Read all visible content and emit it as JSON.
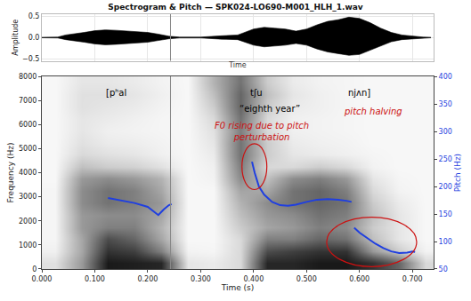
{
  "chart_data": [
    {
      "type": "area",
      "title": "Spectrogram & Pitch — SPK024-LO690-M001_HLH_1.wav",
      "x_label": "Time",
      "y_label": "Amplitude",
      "color": "#000000",
      "x": [
        0.0,
        0.03,
        0.045,
        0.06,
        0.08,
        0.1,
        0.12,
        0.14,
        0.16,
        0.18,
        0.2,
        0.22,
        0.24,
        0.26,
        0.3,
        0.34,
        0.37,
        0.4,
        0.42,
        0.44,
        0.46,
        0.48,
        0.5,
        0.52,
        0.54,
        0.56,
        0.58,
        0.6,
        0.62,
        0.64,
        0.66,
        0.68,
        0.7,
        0.72,
        0.735
      ],
      "upper": [
        0.005,
        0.01,
        0.06,
        0.08,
        0.12,
        0.16,
        0.18,
        0.17,
        0.15,
        0.14,
        0.12,
        0.08,
        0.03,
        0.01,
        0.01,
        0.04,
        0.06,
        0.2,
        0.24,
        0.22,
        0.2,
        0.15,
        0.2,
        0.3,
        0.38,
        0.42,
        0.48,
        0.45,
        0.35,
        0.22,
        0.12,
        0.06,
        0.03,
        0.01,
        0.005
      ],
      "lower": [
        -0.005,
        -0.01,
        -0.05,
        -0.07,
        -0.11,
        -0.15,
        -0.17,
        -0.16,
        -0.14,
        -0.13,
        -0.11,
        -0.07,
        -0.03,
        -0.01,
        -0.01,
        -0.04,
        -0.05,
        -0.18,
        -0.22,
        -0.2,
        -0.18,
        -0.14,
        -0.18,
        -0.27,
        -0.34,
        -0.38,
        -0.42,
        -0.4,
        -0.3,
        -0.2,
        -0.1,
        -0.05,
        -0.03,
        -0.01,
        -0.005
      ],
      "xlim": [
        0,
        0.74
      ],
      "xticks": [
        0,
        0.1,
        0.2,
        0.3,
        0.4,
        0.5,
        0.6,
        0.7
      ],
      "ylim": [
        -0.55,
        0.55
      ],
      "yticks": [
        {
          "value": -0.5,
          "label": "−0.5"
        },
        {
          "value": 0,
          "label": "0.0"
        },
        {
          "value": 0.5,
          "label": "0.5"
        }
      ],
      "grid": true,
      "tick_labels": "y",
      "boundary": 0.243
    },
    {
      "type": "heatmap",
      "x_label": "Time (s)",
      "y_label": "Frequency (Hz)",
      "y2_label": "Pitch (Hz)",
      "x": [
        0.025,
        0.075,
        0.125,
        0.175,
        0.225,
        0.275,
        0.325,
        0.375,
        0.425,
        0.475,
        0.525,
        0.575,
        0.625,
        0.675,
        0.725
      ],
      "y": [
        250,
        750,
        1250,
        1750,
        2250,
        2750,
        3250,
        3750,
        4250,
        4750,
        5250,
        5750,
        6250,
        6750,
        7250,
        7750
      ],
      "z": [
        [
          0.12,
          0.06,
          0.04,
          0.04,
          0.04,
          0.04,
          0.04,
          0.03,
          0.03,
          0.03,
          0.03,
          0.03,
          0.03,
          0.03,
          0.03,
          0.03
        ],
        [
          0.4,
          0.35,
          0.35,
          0.4,
          0.4,
          0.45,
          0.45,
          0.4,
          0.25,
          0.15,
          0.12,
          0.1,
          0.1,
          0.12,
          0.12,
          0.1
        ],
        [
          0.9,
          0.8,
          0.7,
          0.5,
          0.45,
          0.55,
          0.55,
          0.45,
          0.2,
          0.12,
          0.08,
          0.06,
          0.08,
          0.1,
          0.12,
          0.1
        ],
        [
          0.88,
          0.75,
          0.6,
          0.5,
          0.45,
          0.5,
          0.5,
          0.4,
          0.18,
          0.1,
          0.07,
          0.05,
          0.06,
          0.08,
          0.1,
          0.08
        ],
        [
          0.85,
          0.5,
          0.35,
          0.3,
          0.35,
          0.4,
          0.35,
          0.3,
          0.12,
          0.06,
          0.05,
          0.04,
          0.04,
          0.05,
          0.06,
          0.05
        ],
        [
          0.1,
          0.05,
          0.03,
          0.03,
          0.03,
          0.03,
          0.03,
          0.03,
          0.03,
          0.03,
          0.03,
          0.03,
          0.03,
          0.03,
          0.03,
          0.03
        ],
        [
          0.08,
          0.04,
          0.03,
          0.03,
          0.03,
          0.03,
          0.03,
          0.05,
          0.06,
          0.08,
          0.1,
          0.12,
          0.15,
          0.2,
          0.25,
          0.3
        ],
        [
          0.15,
          0.15,
          0.15,
          0.2,
          0.25,
          0.3,
          0.35,
          0.45,
          0.5,
          0.55,
          0.55,
          0.5,
          0.55,
          0.6,
          0.6,
          0.55
        ],
        [
          0.85,
          0.7,
          0.5,
          0.35,
          0.4,
          0.45,
          0.35,
          0.25,
          0.15,
          0.2,
          0.2,
          0.15,
          0.15,
          0.2,
          0.25,
          0.2
        ],
        [
          0.85,
          0.75,
          0.5,
          0.4,
          0.45,
          0.55,
          0.55,
          0.45,
          0.15,
          0.1,
          0.08,
          0.06,
          0.06,
          0.08,
          0.1,
          0.08
        ],
        [
          0.9,
          0.8,
          0.6,
          0.5,
          0.55,
          0.6,
          0.6,
          0.5,
          0.2,
          0.08,
          0.06,
          0.05,
          0.05,
          0.06,
          0.06,
          0.05
        ],
        [
          0.9,
          0.8,
          0.55,
          0.45,
          0.5,
          0.55,
          0.5,
          0.4,
          0.15,
          0.06,
          0.05,
          0.04,
          0.04,
          0.04,
          0.04,
          0.04
        ],
        [
          0.8,
          0.4,
          0.25,
          0.2,
          0.25,
          0.2,
          0.15,
          0.1,
          0.05,
          0.04,
          0.03,
          0.03,
          0.03,
          0.03,
          0.03,
          0.03
        ],
        [
          0.6,
          0.2,
          0.1,
          0.1,
          0.1,
          0.08,
          0.05,
          0.04,
          0.03,
          0.03,
          0.03,
          0.03,
          0.03,
          0.03,
          0.03,
          0.03
        ],
        [
          0.15,
          0.05,
          0.03,
          0.03,
          0.03,
          0.03,
          0.03,
          0.03,
          0.03,
          0.03,
          0.03,
          0.03,
          0.03,
          0.03,
          0.03,
          0.03
        ]
      ],
      "zlim": [
        0,
        1
      ],
      "xlim": [
        0,
        0.74
      ],
      "xticks": [
        {
          "value": 0,
          "label": "0.000"
        },
        {
          "value": 0.1,
          "label": "0.100"
        },
        {
          "value": 0.2,
          "label": "0.200"
        },
        {
          "value": 0.3,
          "label": "0.300"
        },
        {
          "value": 0.4,
          "label": "0.400"
        },
        {
          "value": 0.5,
          "label": "0.500"
        },
        {
          "value": 0.6,
          "label": "0.600"
        },
        {
          "value": 0.7,
          "label": "0.700"
        }
      ],
      "ylim": [
        0,
        8000
      ],
      "yticks": [
        0,
        1000,
        2000,
        3000,
        4000,
        5000,
        6000,
        7000,
        8000
      ],
      "y2lim": [
        50,
        400
      ],
      "y2ticks": [
        50,
        100,
        150,
        200,
        250,
        300,
        350,
        400
      ],
      "grid": false,
      "boundary": 0.243,
      "series": [
        {
          "type": "line",
          "axis": "y2",
          "color": "#1f3fe0",
          "x": [
            0.125,
            0.15,
            0.175,
            0.2,
            0.21,
            0.22,
            0.23,
            0.24,
            0.245,
            null,
            0.397,
            0.402,
            0.41,
            0.42,
            0.435,
            0.45,
            0.465,
            0.48,
            0.5,
            0.52,
            0.54,
            0.56,
            0.575,
            0.585,
            null,
            0.59,
            0.6,
            0.615,
            0.63,
            0.645,
            0.66,
            0.675,
            0.69,
            0.7,
            0.705
          ],
          "values": [
            179,
            175,
            170,
            163,
            155,
            148,
            158,
            166,
            168,
            null,
            245,
            225,
            200,
            185,
            172,
            166,
            165,
            167,
            172,
            176,
            177,
            176,
            174,
            172,
            null,
            125,
            116,
            106,
            96,
            88,
            82,
            79,
            80,
            82,
            81
          ]
        }
      ],
      "annotations": [
        {
          "text": "[pʰal",
          "color": "#000000"
        },
        {
          "text": "tʃu",
          "color": "#000000"
        },
        {
          "text": "njʌn]",
          "color": "#000000"
        },
        {
          "text": "“eighth year”",
          "color": "#000000"
        },
        {
          "text": "F0 rising due to pitch perturbation",
          "color": "#cc1111"
        },
        {
          "text": "pitch halving",
          "color": "#cc1111"
        }
      ]
    }
  ]
}
